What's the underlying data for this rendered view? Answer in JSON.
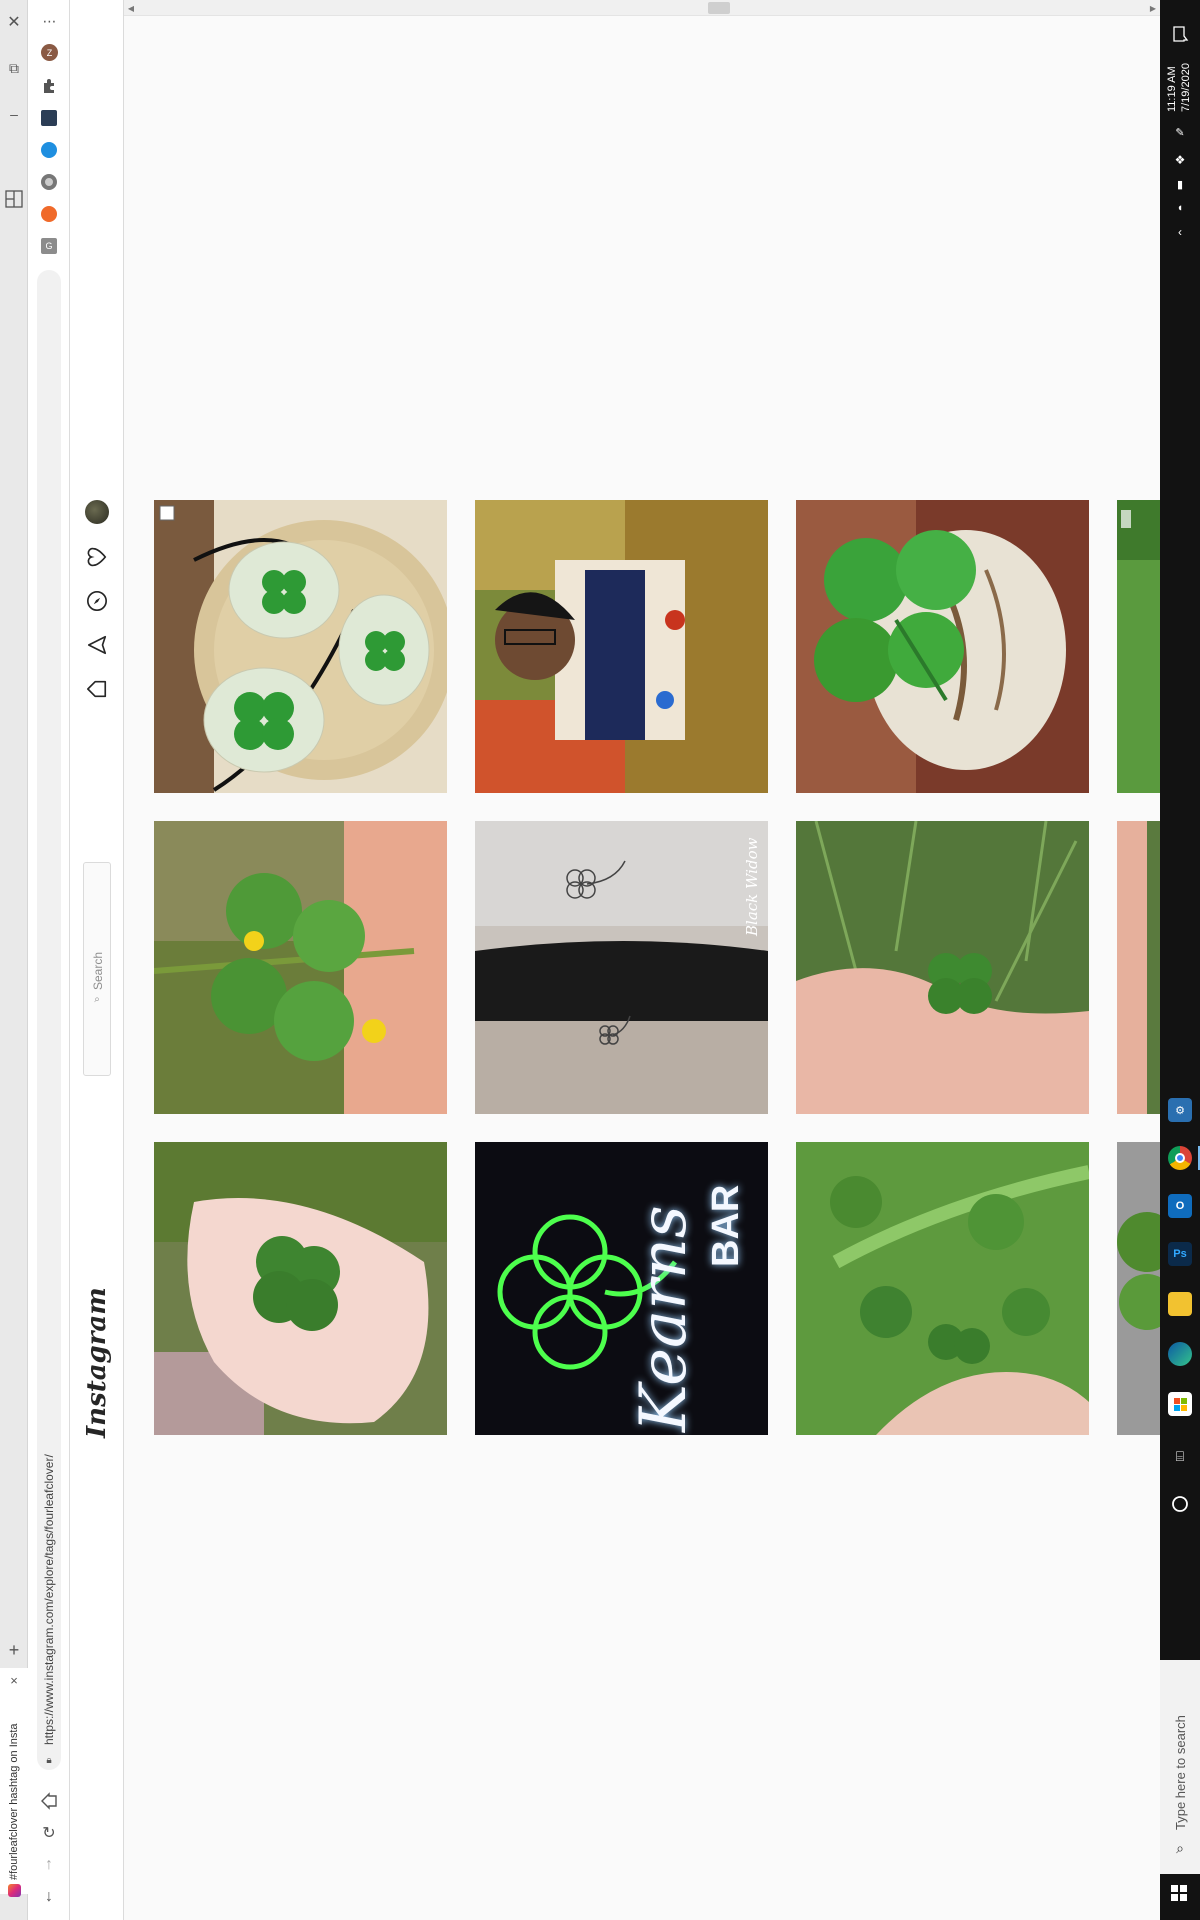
{
  "browser": {
    "tab_title": "#fourleafclover hashtag on Insta",
    "url": "https://www.instagram.com/explore/tags/fourleafclover/",
    "new_tab": "+",
    "close_tab": "×"
  },
  "instagram": {
    "logo_text": "Instagram",
    "search_placeholder": "Search"
  },
  "grid": {
    "tiles": [
      {
        "name": "clover-pendants-post",
        "bg": "#c9b38c"
      },
      {
        "name": "man-colorful-shirt-post",
        "bg": "#6e7c4a"
      },
      {
        "name": "clover-on-stone-post",
        "bg": "#8f5a3a"
      },
      {
        "name": "clover-held-yellow-flowers-post",
        "bg": "#6d8a3e"
      },
      {
        "name": "clover-tattoo-post",
        "bg": "#b8b2ac"
      },
      {
        "name": "clover-in-grass-hand-post",
        "bg": "#587d3c"
      },
      {
        "name": "clover-on-palm-post",
        "bg": "#7e8f5e"
      },
      {
        "name": "neon-bar-sign-post",
        "bg": "#0c0c10"
      },
      {
        "name": "clover-patch-hand-post",
        "bg": "#5a8a3a"
      }
    ],
    "tattoo_caption": "Black Widow",
    "neon_text_1": "Kearns",
    "neon_text_2": "BAR"
  },
  "taskbar": {
    "time": "11:19 AM",
    "date": "7/19/2020",
    "search_placeholder": "Type here to search"
  },
  "colors": {
    "accent_green": "#3a9a2a",
    "neon_green": "#4dff4d",
    "taskbar_bg": "#121212"
  }
}
